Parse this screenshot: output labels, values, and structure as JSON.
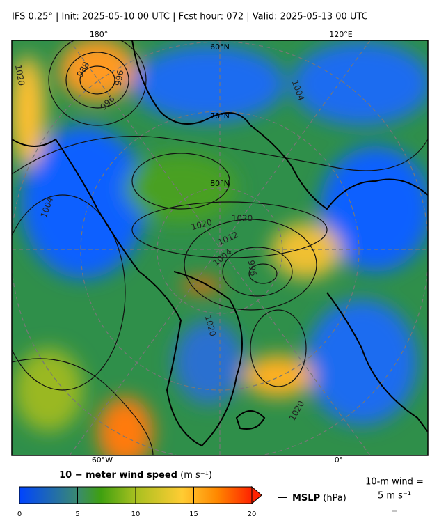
{
  "title": "IFS 0.25°  |  Init: 2025-05-10 00 UTC  |  Fcst hour: 072  |  Valid: 2025-05-13 00 UTC",
  "map": {
    "lon_labels_top": [
      "180°",
      "120°E"
    ],
    "lon_labels_bottom": [
      "60°W",
      "0°"
    ],
    "lat_labels": [
      "60°N",
      "70°N",
      "80°N"
    ],
    "contour_labels": [
      "1020",
      "988",
      "996",
      "996",
      "1004",
      "1020",
      "1020",
      "1012",
      "1004",
      "996",
      "1020",
      "1020",
      "1004"
    ]
  },
  "colorbar": {
    "label": "10 − meter wind speed",
    "unit": "(m s⁻¹)",
    "range": [
      0,
      20
    ],
    "ticks": [
      0,
      5,
      10,
      15,
      20
    ]
  },
  "legend": {
    "line_label": "MSLP",
    "unit": "(hPa)"
  },
  "wind_key": {
    "line1": "10-m wind =",
    "line2": "5 m s⁻¹"
  }
}
